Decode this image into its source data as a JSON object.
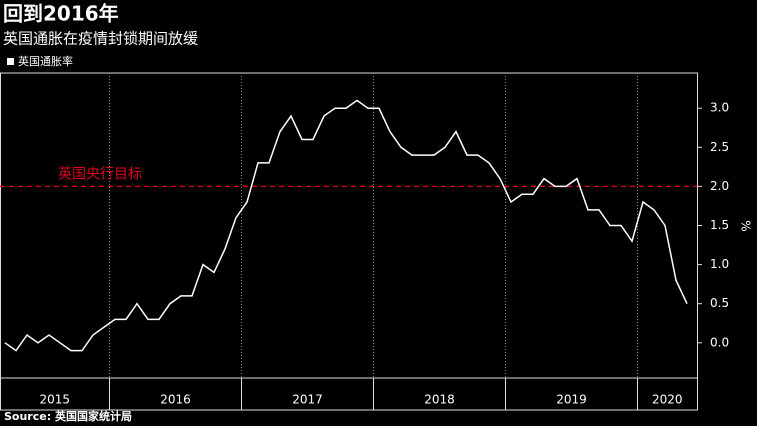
{
  "chart_data": {
    "type": "line",
    "title": "回到2016年",
    "subtitle": "英国通胀在疫情封锁期间放缓",
    "source": "Source: 英国国家统计局",
    "y_axis_label": "%",
    "x": [
      "2015",
      "2015",
      "2015",
      "2015",
      "2015",
      "2015",
      "2015",
      "2015",
      "2015",
      "2015",
      "2016",
      "2016",
      "2016",
      "2016",
      "2016",
      "2016",
      "2016",
      "2016",
      "2016",
      "2016",
      "2016",
      "2016",
      "2017",
      "2017",
      "2017",
      "2017",
      "2017",
      "2017",
      "2017",
      "2017",
      "2017",
      "2017",
      "2017",
      "2017",
      "2018",
      "2018",
      "2018",
      "2018",
      "2018",
      "2018",
      "2018",
      "2018",
      "2018",
      "2018",
      "2018",
      "2018",
      "2019",
      "2019",
      "2019",
      "2019",
      "2019",
      "2019",
      "2019",
      "2019",
      "2019",
      "2019",
      "2019",
      "2019",
      "2020",
      "2020",
      "2020",
      "2020",
      "2020"
    ],
    "series": [
      {
        "name": "英国通胀率",
        "color": "#ffffff",
        "values": [
          0.0,
          -0.1,
          0.1,
          0.0,
          0.1,
          0.0,
          -0.1,
          -0.1,
          0.1,
          0.2,
          0.3,
          0.3,
          0.5,
          0.3,
          0.3,
          0.5,
          0.6,
          0.6,
          1.0,
          0.9,
          1.2,
          1.6,
          1.8,
          2.3,
          2.3,
          2.7,
          2.9,
          2.6,
          2.6,
          2.9,
          3.0,
          3.0,
          3.1,
          3.0,
          3.0,
          2.7,
          2.5,
          2.4,
          2.4,
          2.4,
          2.5,
          2.7,
          2.4,
          2.4,
          2.3,
          2.1,
          1.8,
          1.9,
          1.9,
          2.1,
          2.0,
          2.0,
          2.1,
          1.7,
          1.7,
          1.5,
          1.5,
          1.3,
          1.8,
          1.7,
          1.5,
          0.8,
          0.5
        ]
      }
    ],
    "reference_lines": [
      {
        "value": 2,
        "label": "英国央行目标",
        "color": "#e0001b"
      }
    ],
    "ylim": [
      -0.45,
      3.45
    ],
    "yticks": [
      {
        "value": 0,
        "label": "0.0"
      },
      0.5,
      {
        "value": 1,
        "label": "1.0"
      },
      1.5,
      {
        "value": 2,
        "label": "2.0"
      },
      2.5,
      {
        "value": 3,
        "label": "3.0"
      }
    ],
    "grid": true
  }
}
